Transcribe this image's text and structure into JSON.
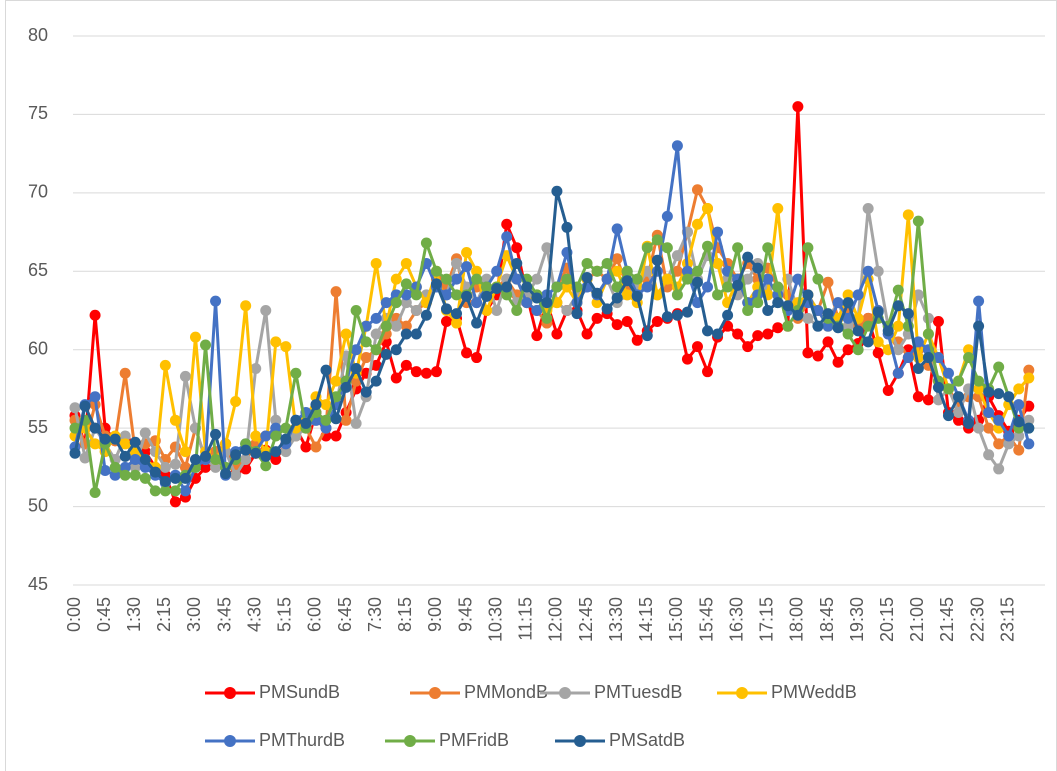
{
  "chart_data": {
    "type": "line",
    "categories": [
      "0:00",
      null,
      null,
      "0:45",
      null,
      null,
      "1:30",
      null,
      null,
      "2:15",
      null,
      null,
      "3:00",
      null,
      null,
      "3:45",
      null,
      null,
      "4:30",
      null,
      null,
      "5:15",
      null,
      null,
      "6:00",
      null,
      null,
      "6:45",
      null,
      null,
      "7:30",
      null,
      null,
      "8:15",
      null,
      null,
      "9:00",
      null,
      null,
      "9:45",
      null,
      null,
      "10:30",
      null,
      null,
      "11:15",
      null,
      null,
      "12:00",
      null,
      null,
      "12:45",
      null,
      null,
      "13:30",
      null,
      null,
      "14:15",
      null,
      null,
      "15:00",
      null,
      null,
      "15:45",
      null,
      null,
      "16:30",
      null,
      null,
      "17:15",
      null,
      null,
      "18:00",
      null,
      null,
      "18:45",
      null,
      null,
      "19:30",
      null,
      null,
      "20:15",
      null,
      null,
      "21:00",
      null,
      null,
      "21:45",
      null,
      null,
      "22:30",
      null,
      null,
      "23:15",
      null,
      null
    ],
    "ylim": [
      45,
      80
    ],
    "yticks": [
      45,
      50,
      55,
      60,
      65,
      70,
      75,
      80
    ],
    "grid": true,
    "legend": "bottom",
    "series": [
      {
        "name": "PMSundB",
        "color": "#ff0000",
        "values": [
          55.8,
          54.0,
          62.2,
          55.0,
          54.2,
          54.3,
          53.0,
          53.5,
          52.5,
          52.0,
          50.3,
          50.6,
          51.8,
          52.5,
          53.5,
          54.0,
          52.1,
          52.4,
          53.4,
          53.6,
          53.0,
          54.0,
          55.0,
          53.8,
          56.0,
          54.5,
          54.5,
          56.0,
          57.5,
          58.5,
          59.0,
          60.5,
          58.2,
          59.0,
          58.6,
          58.5,
          58.6,
          61.8,
          62.0,
          59.8,
          59.5,
          62.5,
          63.5,
          68.0,
          66.5,
          63.5,
          60.9,
          63.0,
          61.0,
          62.5,
          62.5,
          61.0,
          62.0,
          62.3,
          61.6,
          61.8,
          60.6,
          61.2,
          61.8,
          62.0,
          62.3,
          59.4,
          60.2,
          58.6,
          60.8,
          61.5,
          61.0,
          60.2,
          60.9,
          61.0,
          61.4,
          61.5,
          75.5,
          59.8,
          59.6,
          60.5,
          59.2,
          60.0,
          60.4,
          62.0,
          59.8,
          57.4,
          58.5,
          60.0,
          57.0,
          56.8,
          61.8,
          56.0,
          55.5,
          55.0,
          55.5,
          57.0,
          55.8,
          54.8,
          55.5,
          56.4
        ]
      },
      {
        "name": "PMMondB",
        "color": "#ed7d31",
        "values": [
          55.5,
          54.0,
          56.5,
          54.5,
          54.2,
          58.5,
          53.5,
          54.0,
          54.2,
          53.0,
          53.8,
          52.5,
          55.0,
          53.0,
          53.5,
          54.0,
          52.5,
          53.0,
          54.0,
          54.5,
          55.0,
          54.0,
          54.5,
          55.0,
          53.8,
          55.0,
          63.7,
          55.5,
          58.0,
          59.5,
          60.0,
          61.0,
          62.0,
          61.5,
          62.5,
          63.0,
          64.5,
          64.0,
          65.8,
          63.0,
          64.0,
          63.5,
          64.0,
          64.5,
          63.5,
          63.0,
          62.5,
          61.7,
          64.0,
          65.2,
          63.0,
          64.5,
          65.0,
          64.5,
          65.8,
          64.0,
          63.5,
          64.5,
          67.3,
          64.0,
          65.0,
          67.5,
          70.2,
          69.0,
          66.5,
          65.5,
          64.5,
          65.5,
          64.5,
          65.2,
          64.0,
          63.5,
          62.0,
          63.0,
          62.5,
          64.3,
          62.0,
          62.5,
          61.5,
          62.0,
          62.5,
          61.0,
          60.5,
          59.5,
          60.0,
          59.0,
          58.0,
          57.5,
          56.5,
          57.0,
          57.0,
          55.0,
          54.0,
          54.5,
          53.6,
          58.7
        ]
      },
      {
        "name": "PMTuesdB",
        "color": "#a5a5a5",
        "values": [
          56.3,
          53.1,
          55.0,
          54.0,
          53.0,
          54.5,
          52.5,
          54.7,
          53.5,
          52.5,
          52.7,
          58.3,
          55.0,
          53.0,
          52.5,
          53.5,
          52.0,
          53.0,
          58.8,
          62.5,
          55.5,
          53.5,
          54.5,
          55.0,
          55.5,
          55.0,
          56.5,
          59.6,
          55.3,
          57.0,
          61.0,
          62.0,
          61.5,
          63.0,
          62.5,
          63.5,
          64.0,
          63.5,
          65.5,
          64.0,
          63.0,
          64.5,
          62.5,
          64.5,
          63.0,
          63.5,
          64.5,
          66.5,
          63.0,
          62.5,
          63.5,
          64.0,
          63.5,
          64.5,
          63.0,
          63.5,
          64.0,
          65.0,
          63.5,
          64.5,
          66.0,
          67.5,
          64.5,
          66.0,
          65.5,
          64.5,
          63.5,
          64.5,
          65.5,
          64.0,
          63.0,
          64.5,
          62.5,
          62.0,
          61.5,
          62.0,
          63.0,
          61.5,
          62.0,
          69.0,
          65.0,
          61.5,
          60.0,
          61.0,
          63.5,
          62.0,
          56.8,
          57.5,
          56.0,
          57.5,
          55.0,
          53.3,
          52.4,
          54.0,
          54.5,
          55.5
        ]
      },
      {
        "name": "PMWeddB",
        "color": "#ffc000",
        "values": [
          54.5,
          55.0,
          54.0,
          53.5,
          54.5,
          54.0,
          53.5,
          53.0,
          52.5,
          59.0,
          55.5,
          53.5,
          60.8,
          53.5,
          53.0,
          54.0,
          56.7,
          62.8,
          54.5,
          53.5,
          60.5,
          60.2,
          55.0,
          55.5,
          57.0,
          56.5,
          58.0,
          61.0,
          58.5,
          61.5,
          65.5,
          61.5,
          64.5,
          65.5,
          64.0,
          63.0,
          65.0,
          62.5,
          61.7,
          66.2,
          65.0,
          62.5,
          64.0,
          66.0,
          64.5,
          63.0,
          63.5,
          62.5,
          63.0,
          64.0,
          63.0,
          64.5,
          63.0,
          64.5,
          65.0,
          63.5,
          63.0,
          66.6,
          63.5,
          64.5,
          64.0,
          65.5,
          68.0,
          69.0,
          65.5,
          63.0,
          64.5,
          63.0,
          64.0,
          63.5,
          69.0,
          62.5,
          63.0,
          63.5,
          62.5,
          61.5,
          62.0,
          63.5,
          62.0,
          64.5,
          60.5,
          60.0,
          61.5,
          68.6,
          59.5,
          61.0,
          59.5,
          57.5,
          58.0,
          60.0,
          57.5,
          56.0,
          55.0,
          56.5,
          57.5,
          58.2
        ]
      },
      {
        "name": "PMThurdB",
        "color": "#4472c4",
        "values": [
          53.8,
          56.5,
          57.0,
          52.3,
          52.0,
          52.5,
          53.0,
          52.5,
          52.0,
          51.5,
          52.0,
          51.0,
          52.5,
          53.0,
          63.1,
          52.0,
          53.5,
          54.0,
          53.5,
          54.5,
          55.0,
          54.0,
          55.5,
          56.0,
          55.5,
          55.0,
          56.5,
          58.0,
          60.0,
          61.5,
          62.0,
          63.0,
          63.5,
          63.5,
          64.0,
          65.5,
          64.0,
          63.5,
          64.5,
          65.3,
          63.0,
          64.0,
          65.0,
          67.2,
          64.5,
          63.0,
          62.5,
          63.5,
          64.0,
          66.2,
          63.0,
          64.0,
          63.5,
          64.5,
          67.7,
          65.0,
          63.5,
          64.0,
          65.0,
          68.5,
          73.0,
          65.0,
          63.0,
          64.0,
          67.5,
          65.0,
          64.5,
          63.0,
          63.5,
          64.5,
          63.5,
          62.5,
          64.5,
          63.0,
          62.5,
          61.5,
          63.0,
          62.0,
          63.5,
          65.0,
          62.5,
          61.0,
          58.5,
          59.5,
          60.5,
          60.0,
          59.5,
          58.5,
          57.0,
          55.5,
          63.1,
          56.0,
          55.5,
          54.5,
          56.5,
          54.0
        ]
      },
      {
        "name": "PMFridB",
        "color": "#70ad47",
        "values": [
          55.0,
          55.5,
          50.9,
          54.0,
          52.5,
          52.0,
          52.0,
          51.8,
          51.0,
          51.0,
          51.0,
          52.0,
          52.5,
          60.3,
          53.0,
          52.5,
          53.0,
          54.0,
          53.5,
          52.6,
          54.5,
          55.0,
          58.5,
          55.0,
          56.0,
          55.5,
          57.0,
          58.0,
          62.5,
          60.5,
          60.0,
          61.5,
          63.0,
          64.2,
          63.5,
          66.8,
          65.0,
          64.5,
          63.5,
          63.5,
          64.5,
          64.0,
          64.0,
          63.5,
          62.5,
          64.5,
          63.5,
          62.0,
          64.0,
          64.5,
          64.0,
          65.5,
          65.0,
          65.5,
          64.0,
          65.0,
          64.5,
          66.5,
          67.0,
          66.5,
          63.5,
          64.5,
          65.0,
          66.6,
          63.5,
          64.0,
          66.5,
          62.5,
          63.0,
          66.5,
          64.0,
          61.5,
          62.5,
          66.5,
          64.5,
          62.0,
          61.5,
          61.0,
          60.0,
          61.5,
          62.0,
          61.5,
          63.8,
          61.5,
          68.2,
          61.0,
          58.0,
          57.5,
          58.0,
          59.5,
          58.0,
          57.5,
          58.9,
          57.0,
          55.0,
          55.0
        ]
      },
      {
        "name": "PMSatdB",
        "color": "#255e91",
        "values": [
          53.4,
          56.4,
          55.0,
          54.3,
          54.3,
          53.2,
          54.1,
          53.0,
          52.2,
          51.6,
          51.8,
          51.8,
          53.0,
          53.2,
          54.6,
          52.1,
          53.3,
          53.6,
          53.4,
          53.2,
          53.5,
          54.3,
          55.5,
          55.3,
          56.5,
          58.7,
          55.6,
          57.6,
          58.8,
          57.3,
          58.0,
          59.7,
          60.0,
          61.0,
          61.0,
          62.2,
          64.2,
          62.6,
          62.3,
          63.4,
          61.7,
          63.4,
          63.9,
          64.0,
          65.5,
          64.0,
          63.3,
          63.0,
          70.1,
          67.8,
          62.3,
          64.6,
          63.6,
          62.6,
          63.3,
          64.4,
          63.4,
          60.9,
          65.7,
          62.1,
          62.2,
          62.4,
          64.3,
          61.2,
          61.0,
          62.2,
          64.1,
          65.9,
          65.2,
          62.5,
          63.0,
          62.8,
          62.2,
          63.5,
          61.5,
          62.3,
          61.4,
          63.0,
          61.2,
          60.5,
          62.4,
          61.2,
          62.8,
          62.3,
          58.8,
          59.5,
          57.6,
          55.8,
          57.0,
          55.3,
          61.5,
          57.3,
          57.2,
          57.0,
          55.4,
          55.0
        ]
      }
    ]
  }
}
